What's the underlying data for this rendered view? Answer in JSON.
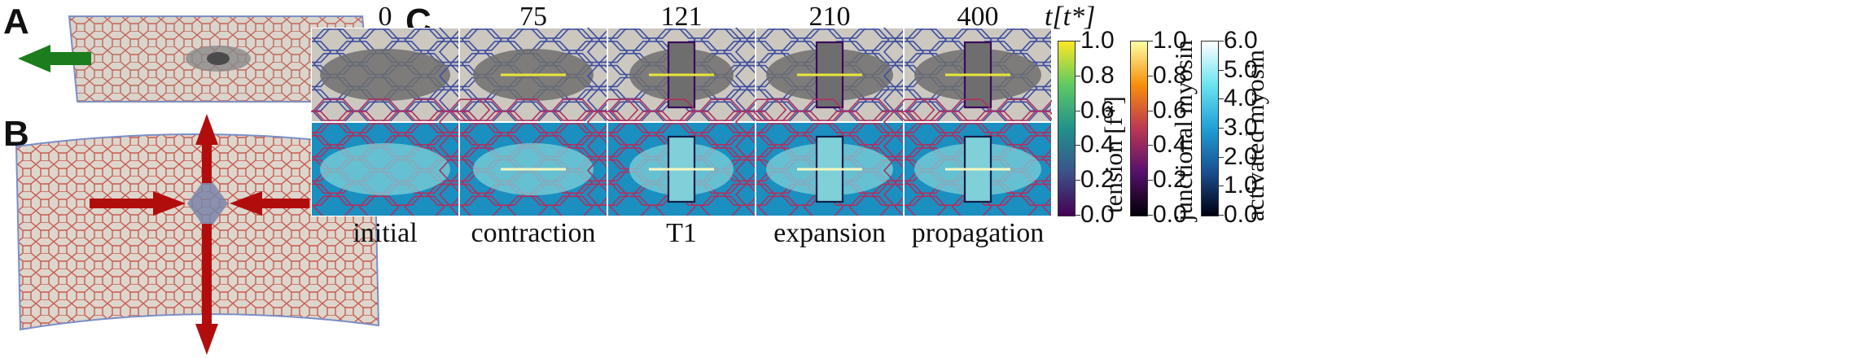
{
  "panels": {
    "a": "A",
    "b": "B",
    "c": "C"
  },
  "time_unit_label": "t[t*]",
  "times": [
    "0",
    "75",
    "121",
    "210",
    "400"
  ],
  "stages": [
    "initial",
    "contraction",
    "T1",
    "expansion",
    "propagation"
  ],
  "colorbars": [
    {
      "label": "tension [f*]",
      "ticks": [
        "1.0",
        "0.8",
        "0.6",
        "0.4",
        "0.2",
        "0.0"
      ],
      "colors": [
        "#fde725",
        "#5ec962",
        "#21918c",
        "#3b528b",
        "#440154"
      ]
    },
    {
      "label": "junctional myosin",
      "ticks": [
        "1.0",
        "0.8",
        "0.6",
        "0.4",
        "0.2",
        "0.0"
      ],
      "colors": [
        "#fcffa4",
        "#f98e09",
        "#bc3754",
        "#57106e",
        "#000004"
      ]
    },
    {
      "label": "activated myosin",
      "ticks": [
        "6.0",
        "5.0",
        "4.0",
        "3.0",
        "2.0",
        "1.0",
        "0.0"
      ],
      "colors": [
        "#ffffff",
        "#6be4f0",
        "#1f9fd6",
        "#1a4f90",
        "#000010"
      ]
    }
  ],
  "colors": {
    "top_bg": "#ccc8c0",
    "bottom_bg": "#1a8fc0",
    "dark_cells": "#6e6e6e",
    "light_cells_bottom": "#7fd0d8",
    "arrow_green": "#1b7d1b",
    "arrow_red": "#b20d0d"
  }
}
